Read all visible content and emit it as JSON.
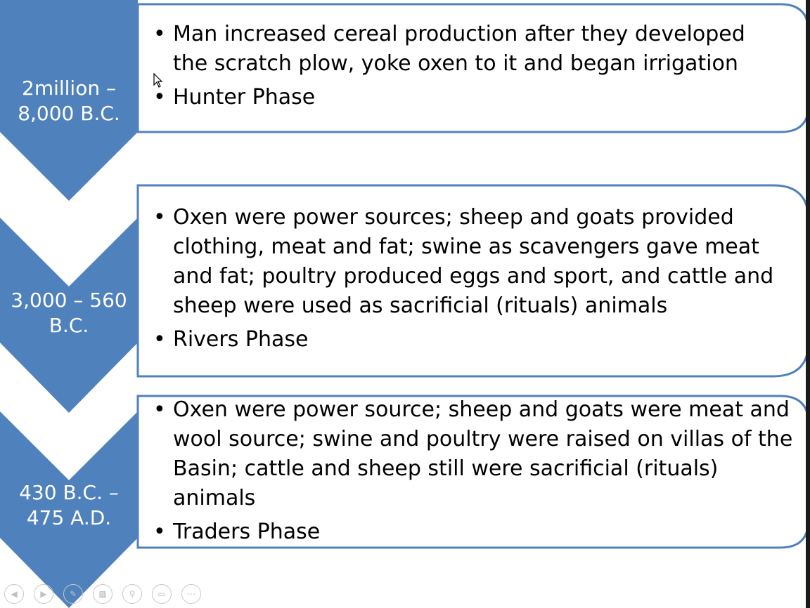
{
  "colors": {
    "chevron": "#4f81bd",
    "panel_border": "#4f81bd",
    "panel_fill": "#ffffff",
    "text": "#000000",
    "nav": "#c8c8c8"
  },
  "timeline": [
    {
      "period_line1": "2million –",
      "period_line2": "8,000 B.C.",
      "bullet1": "Man increased cereal production after they developed the scratch plow, yoke oxen to it and began irrigation",
      "bullet2": "Hunter Phase"
    },
    {
      "period_line1": "3,000 – 560",
      "period_line2": "B.C.",
      "bullet1": "Oxen were power sources; sheep and goats provided clothing, meat and fat; swine as scavengers gave meat and fat; poultry produced eggs and sport, and cattle and sheep were used as sacrificial (rituals) animals",
      "bullet2": "Rivers Phase"
    },
    {
      "period_line1": "430 B.C. –",
      "period_line2": "475 A.D.",
      "bullet1": "Oxen were power source; sheep and goats were meat and wool source; swine and poultry were raised on villas of the Basin; cattle and sheep still were sacrificial (rituals) animals",
      "bullet2": "Traders Phase"
    }
  ],
  "nav_icons": [
    "previous-slide-icon",
    "next-slide-icon",
    "pen-icon",
    "slides-grid-icon",
    "zoom-icon",
    "screen-icon",
    "more-options-icon"
  ]
}
